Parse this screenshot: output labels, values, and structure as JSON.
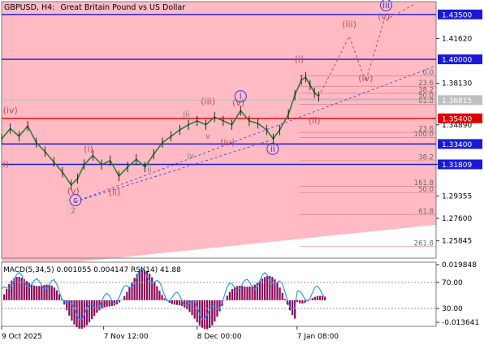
{
  "header": {
    "symbol_timeframe": "GBPUSD, H4:",
    "description": "Great Britain Pound vs US Dollar"
  },
  "price_axis": {
    "labels": [
      "1.41620",
      "1.38130",
      "1.34890",
      "1.31809",
      "1.29355",
      "1.27600",
      "1.25845"
    ],
    "ylim": [
      1.245,
      1.445
    ]
  },
  "time_axis": [
    "9 Oct 2025",
    "7 Nov 12:00",
    "8 Dec 00:00",
    "7 Jan 08:00"
  ],
  "levels": [
    {
      "label": "1.43500",
      "value": 1.435,
      "color": "#1a1ad6"
    },
    {
      "label": "1.40000",
      "value": 1.4,
      "color": "#1a1ad6"
    },
    {
      "label": "1.36815",
      "value": 1.3682,
      "color": "#bfbfbf",
      "current": true
    },
    {
      "label": "1.35400",
      "value": 1.354,
      "color": "#e00000"
    },
    {
      "label": "1.33400",
      "value": 1.334,
      "color": "#1a1ad6"
    },
    {
      "label": "1.31809",
      "value": 1.3181,
      "color": "#1a1ad6"
    }
  ],
  "fib_levels": [
    {
      "label": "0.0",
      "value": 1.387
    },
    {
      "label": "23.6",
      "value": 1.379
    },
    {
      "label": "38.2",
      "value": 1.3735
    },
    {
      "label": "50.0",
      "value": 1.369
    },
    {
      "label": "61.8",
      "value": 1.365
    },
    {
      "label": "23.6",
      "value": 1.343
    },
    {
      "label": "100.0",
      "value": 1.339
    },
    {
      "label": "38.2",
      "value": 1.321
    },
    {
      "label": "161.8",
      "value": 1.301
    },
    {
      "label": "50.0",
      "value": 1.296
    },
    {
      "label": "61.8",
      "value": 1.279
    },
    {
      "label": "261.8",
      "value": 1.254
    }
  ],
  "wave_labels": [
    {
      "text": "(iv)",
      "style": "red",
      "t": 0.02,
      "v": 1.358
    },
    {
      "text": "(iii)",
      "style": "red",
      "t": 0.0,
      "v": 1.316
    },
    {
      "text": "(i)",
      "style": "red",
      "t": 0.2,
      "v": 1.328
    },
    {
      "text": "(v)",
      "style": "red",
      "t": 0.165,
      "v": 1.295
    },
    {
      "text": "(ii)",
      "style": "red",
      "t": 0.26,
      "v": 1.294
    },
    {
      "text": "(iii)",
      "style": "red",
      "t": 0.475,
      "v": 1.365
    },
    {
      "text": "(v)",
      "style": "red",
      "t": 0.545,
      "v": 1.364
    },
    {
      "text": "(iv)",
      "style": "red",
      "t": 0.52,
      "v": 1.333
    },
    {
      "text": "(i)",
      "style": "red",
      "t": 0.685,
      "v": 1.398
    },
    {
      "text": "(ii)",
      "style": "red",
      "t": 0.72,
      "v": 1.35
    },
    {
      "text": "(iii)",
      "style": "red",
      "t": 0.8,
      "v": 1.425
    },
    {
      "text": "(iv)",
      "style": "red",
      "t": 0.838,
      "v": 1.383
    },
    {
      "text": "(v)",
      "style": "red",
      "t": 0.88,
      "v": 1.431
    },
    {
      "text": "iii",
      "style": "gray",
      "t": 0.425,
      "v": 1.355
    },
    {
      "text": "v",
      "style": "gray",
      "t": 0.475,
      "v": 1.338
    },
    {
      "text": "iv",
      "style": "gray",
      "t": 0.435,
      "v": 1.323
    },
    {
      "text": "ii",
      "style": "gray",
      "t": 0.34,
      "v": 1.312
    },
    {
      "text": "2",
      "style": "gray",
      "t": 0.165,
      "v": 1.28
    },
    {
      "text": "i",
      "style": "blue",
      "t": 0.55,
      "v": 1.369
    },
    {
      "text": "ii",
      "style": "blue",
      "t": 0.624,
      "v": 1.328
    },
    {
      "text": "c",
      "style": "blue",
      "t": 0.17,
      "v": 1.288
    },
    {
      "text": "iii",
      "style": "blue",
      "t": 0.885,
      "v": 1.44
    }
  ],
  "indicator": {
    "macd_label": "MACD(5,34,5) 0.001055 0.004147 RSI(14) 41.88",
    "labels": [
      "0.019848",
      "70.00",
      "30.00",
      "-0.013641"
    ]
  }
}
